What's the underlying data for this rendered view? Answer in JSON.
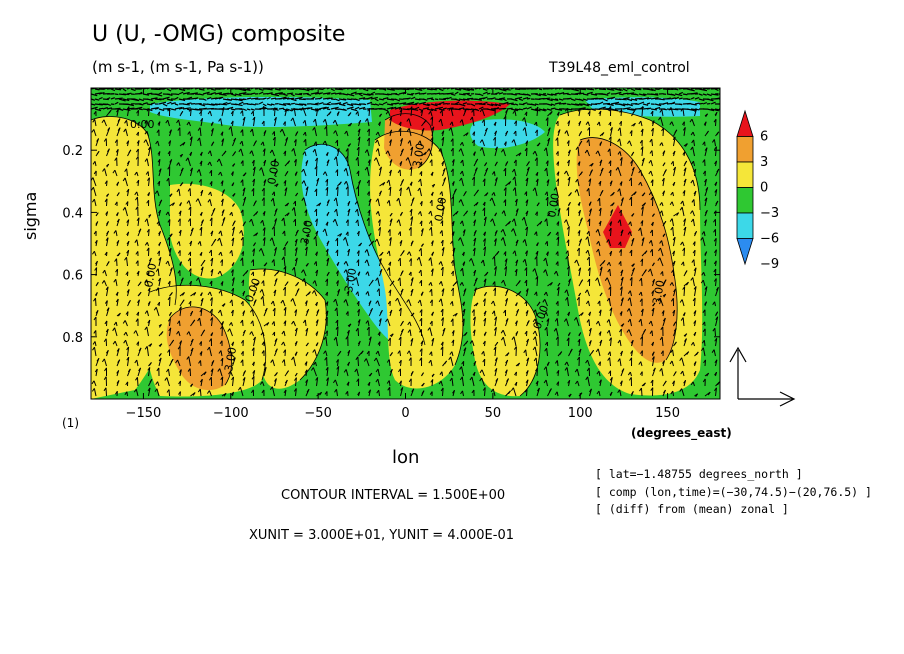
{
  "chart_data": {
    "type": "heatmap",
    "title": "U (U, -OMG) composite",
    "subtitle": "(m s-1, (m s-1, Pa s-1))",
    "experiment": "T39L48_eml_control",
    "panel_label": "(1)",
    "xlabel": "lon",
    "xunits": "(degrees_east)",
    "ylabel": "sigma",
    "x_ticks": [
      -150,
      -100,
      -50,
      0,
      50,
      100,
      150
    ],
    "x_tick_labels": [
      "−150",
      "−100",
      "−50",
      "0",
      "50",
      "100",
      "150"
    ],
    "y_ticks": [
      0.2,
      0.4,
      0.6,
      0.8
    ],
    "y_tick_labels": [
      "0.2",
      "0.4",
      "0.6",
      "0.8"
    ],
    "xlim": [
      -180,
      180
    ],
    "ylim": [
      1.0,
      0.0
    ],
    "colorbar": {
      "levels": [
        6,
        3,
        0,
        -3,
        -6,
        -9
      ],
      "labels": [
        "6",
        "3",
        "0",
        "−3",
        "−6",
        "−9"
      ],
      "colors": [
        "#e8141c",
        "#f0a030",
        "#f5e639",
        "#2fc832",
        "#3cd8e8",
        "#2c8cf0"
      ]
    },
    "contour_interval": "CONTOUR INTERVAL = 1.500E+00",
    "vector_units": "XUNIT = 3.000E+01, YUNIT = 4.000E-01",
    "info_lines": [
      "[ lat=−1.48755 degrees_north ]",
      "[ comp (lon,time)=(−30,74.5)−(20,76.5) ]",
      "[ (diff) from (mean) zonal ]"
    ],
    "contour_labels": [
      "0.00",
      "0.00",
      "0.00",
      "3.00",
      "3.00",
      "3.00",
      "0.00",
      "0.00",
      "3.00",
      "3.00",
      "0.00",
      "0.00"
    ],
    "colors": {
      "background": "#2fc832",
      "red": "#e8141c",
      "orange": "#f0a030",
      "yellow": "#f5e639",
      "green": "#2fc832",
      "cyan": "#3cd8e8",
      "blue": "#2c8cf0"
    }
  }
}
